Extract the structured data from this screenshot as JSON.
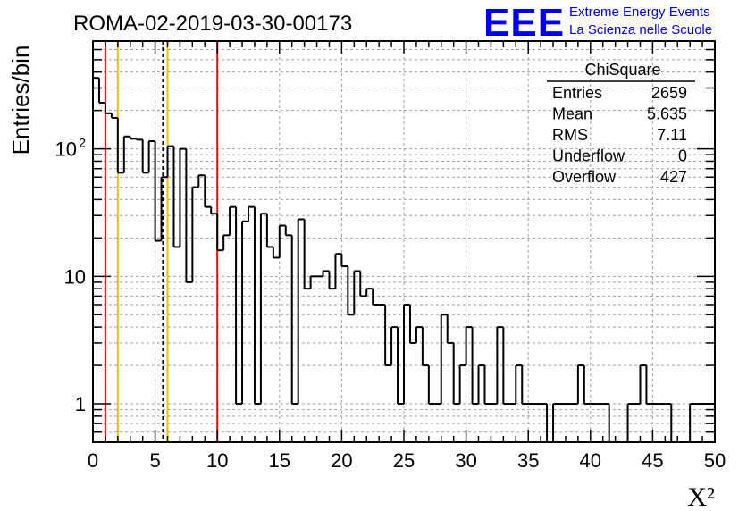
{
  "logo": {
    "text": "EEE",
    "line1": "Extreme Energy Events",
    "line2": "La Scienza nelle Scuole",
    "color": "#0000ee"
  },
  "chart_data": {
    "type": "histogram",
    "title": "ROMA-02-2019-03-30-00173",
    "xlabel": "X²",
    "ylabel": "Entries/bin",
    "xlim": [
      0,
      50
    ],
    "ylim": [
      0.5,
      700
    ],
    "yscale": "log",
    "grid": true,
    "bin_width": 0.5,
    "x_ticks": [
      "0",
      "5",
      "10",
      "15",
      "20",
      "25",
      "30",
      "35",
      "40",
      "45",
      "50"
    ],
    "y_ticks": [
      {
        "value": 1,
        "label": "1"
      },
      {
        "value": 10,
        "label": "10"
      },
      {
        "value": 100,
        "label": "10",
        "sup": "2"
      }
    ],
    "values": [
      360,
      230,
      190,
      175,
      65,
      125,
      120,
      118,
      65,
      115,
      19,
      60,
      105,
      17,
      100,
      9,
      50,
      62,
      35,
      31,
      16,
      21,
      35,
      1,
      27,
      35,
      1,
      31,
      17,
      14,
      25,
      21,
      1,
      28,
      8,
      10,
      10,
      11,
      8,
      15,
      12,
      5,
      11,
      7,
      8,
      6,
      6,
      2,
      4,
      1,
      6,
      3,
      4,
      2,
      1,
      1,
      5,
      3,
      1,
      2,
      4,
      1,
      2,
      1,
      1,
      4,
      1,
      1,
      2,
      1,
      1,
      1,
      1,
      0,
      1,
      1,
      1,
      1,
      2,
      1,
      1,
      1,
      1,
      0,
      0,
      0,
      1,
      1,
      2,
      1,
      1,
      1,
      1,
      0,
      0,
      0,
      1,
      1,
      1,
      1
    ],
    "vlines": [
      {
        "x": 1.0,
        "color": "#dd1111",
        "style": "solid"
      },
      {
        "x": 2.0,
        "color": "#f0c000",
        "style": "solid"
      },
      {
        "x": 5.635,
        "color": "#000000",
        "style": "dashed"
      },
      {
        "x": 6.0,
        "color": "#f0c000",
        "style": "solid"
      },
      {
        "x": 10.0,
        "color": "#dd1111",
        "style": "solid"
      }
    ],
    "stats": {
      "name": "ChiSquare",
      "rows": [
        {
          "label": "Entries",
          "value": "2659"
        },
        {
          "label": "Mean",
          "value": "5.635"
        },
        {
          "label": "RMS",
          "value": "7.11"
        },
        {
          "label": "Underflow",
          "value": "0"
        },
        {
          "label": "Overflow",
          "value": "427"
        }
      ]
    }
  }
}
